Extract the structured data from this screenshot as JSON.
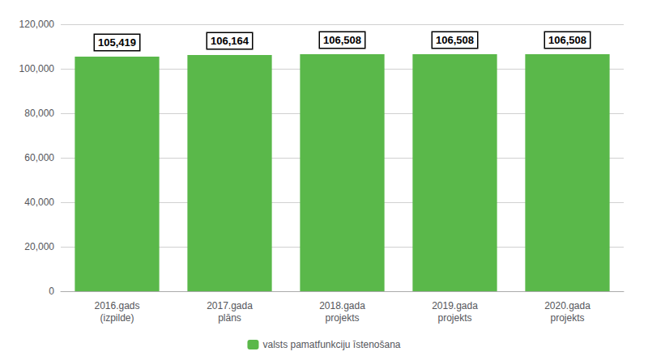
{
  "chart_data": {
    "type": "bar",
    "categories": [
      "2016.gads\n(izpilde)",
      "2017.gada\nplāns",
      "2018.gada\nprojekts",
      "2019.gada\nprojekts",
      "2020.gada\nprojekts"
    ],
    "series": [
      {
        "name": "valsts pamatfunkciju īstenošana",
        "color": "#5ab84a",
        "values": [
          105419,
          106164,
          106508,
          106508,
          106508
        ],
        "value_labels": [
          "105,419",
          "106,164",
          "106,508",
          "106,508",
          "106,508"
        ]
      }
    ],
    "ylim": [
      0,
      120000
    ],
    "yticks": [
      0,
      {
        "value": 20000,
        "label": "20,000"
      },
      {
        "value": 40000,
        "label": "40,000"
      },
      {
        "value": 60000,
        "label": "60,000"
      },
      {
        "value": 80000,
        "label": "80,000"
      },
      {
        "value": 100000,
        "label": "100,000"
      },
      {
        "value": 120000,
        "label": "120,000"
      }
    ],
    "grid": true,
    "legend": "bottom",
    "data_labels": true
  }
}
